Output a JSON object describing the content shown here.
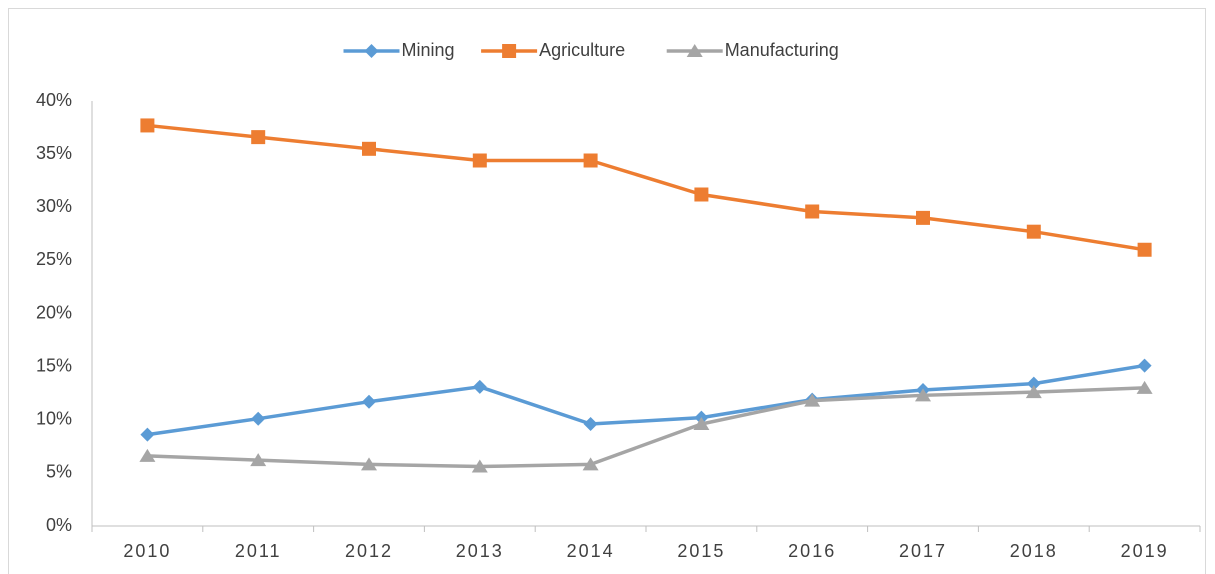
{
  "chart_data": {
    "type": "line",
    "categories": [
      "2010",
      "2011",
      "2012",
      "2013",
      "2014",
      "2015",
      "2016",
      "2017",
      "2018",
      "2019"
    ],
    "series": [
      {
        "name": "Mining",
        "color": "#5b9bd5",
        "marker": "diamond",
        "values": [
          8.6,
          10.1,
          11.7,
          13.1,
          9.6,
          10.2,
          11.9,
          12.8,
          13.4,
          15.1
        ]
      },
      {
        "name": "Agriculture",
        "color": "#ed7d31",
        "marker": "square",
        "values": [
          37.7,
          36.6,
          35.5,
          34.4,
          34.4,
          31.2,
          29.6,
          29.0,
          27.7,
          26.0
        ]
      },
      {
        "name": "Manufacturing",
        "color": "#a5a5a5",
        "marker": "triangle",
        "values": [
          6.6,
          6.2,
          5.8,
          5.6,
          5.8,
          9.6,
          11.8,
          12.3,
          12.6,
          13.0
        ]
      }
    ],
    "ylim": [
      0,
      40
    ],
    "yticks": [
      {
        "value": 0,
        "label": "0%"
      },
      {
        "value": 5,
        "label": "5%"
      },
      {
        "value": 10,
        "label": "10%"
      },
      {
        "value": 15,
        "label": "15%"
      },
      {
        "value": 20,
        "label": "20%"
      },
      {
        "value": 25,
        "label": "25%"
      },
      {
        "value": 30,
        "label": "30%"
      },
      {
        "value": 35,
        "label": "35%"
      },
      {
        "value": 40,
        "label": "40%"
      }
    ],
    "grid": false,
    "legend": "top"
  }
}
